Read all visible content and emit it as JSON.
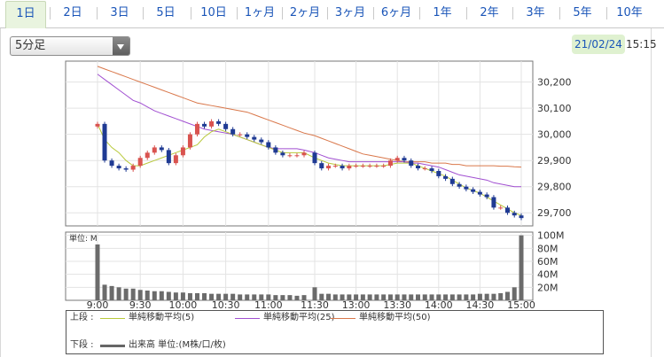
{
  "tabs": [
    {
      "label": "1日",
      "active": true
    },
    {
      "label": "2日"
    },
    {
      "label": "3日"
    },
    {
      "label": "5日"
    },
    {
      "label": "10日"
    },
    {
      "label": "1ヶ月"
    },
    {
      "label": "2ヶ月"
    },
    {
      "label": "3ヶ月"
    },
    {
      "label": "6ヶ月"
    },
    {
      "label": "1年"
    },
    {
      "label": "2年"
    },
    {
      "label": "3年"
    },
    {
      "label": "5年"
    },
    {
      "label": "10年"
    }
  ],
  "interval_select": {
    "value": "5分足"
  },
  "timestamp": {
    "date": "21/02/24",
    "time": "15:15"
  },
  "colors": {
    "up": "#d9534f",
    "down": "#1f3a93",
    "ma5": "#b8c93a",
    "ma25": "#a14fd1",
    "ma50": "#d9774a",
    "volume": "#6b6b6b",
    "link": "#1a55b8"
  },
  "chart_data": [
    {
      "type": "candlestick",
      "title": "",
      "y_tick_labels": [
        "30,200",
        "30,100",
        "30,000",
        "29,900",
        "29,800",
        "29,700"
      ],
      "x_tick_labels": [
        "9:00",
        "9:30",
        "10:00",
        "10:30",
        "11:00",
        "11:30",
        "13:00",
        "13:30",
        "14:00",
        "14:30",
        "15:00"
      ],
      "ylim": [
        29650,
        30280
      ],
      "sessions": [
        {
          "start": "9:00",
          "count": 30
        },
        {
          "start": "12:30",
          "count": 31
        }
      ],
      "close": [
        30040,
        29900,
        29880,
        29870,
        29865,
        29880,
        29910,
        29930,
        29950,
        29940,
        29890,
        29920,
        29950,
        30000,
        30040,
        30030,
        30050,
        30040,
        30020,
        30000,
        30000,
        29990,
        29980,
        29970,
        29950,
        29930,
        29920,
        29920,
        29920,
        29930,
        29890,
        29870,
        29880,
        29880,
        29870,
        29880,
        29880,
        29880,
        29880,
        29880,
        29880,
        29900,
        29910,
        29900,
        29880,
        29870,
        29870,
        29860,
        29840,
        29830,
        29810,
        29800,
        29790,
        29780,
        29770,
        29760,
        29720,
        29720,
        29700,
        29690,
        29680
      ],
      "ma5": [
        30040,
        29980,
        29950,
        29930,
        29900,
        29880,
        29880,
        29890,
        29900,
        29910,
        29920,
        29930,
        29940,
        29950,
        29960,
        29990,
        30010,
        30020,
        30010,
        30000,
        29990,
        29980,
        29970,
        29960,
        29950,
        29940,
        29930,
        29930,
        29930,
        29930,
        29910,
        29900,
        29890,
        29885,
        29880,
        29880,
        29880,
        29880,
        29880,
        29880,
        29880,
        29885,
        29890,
        29890,
        29890,
        29880,
        29870,
        29860,
        29850,
        29840,
        29825,
        29810,
        29795,
        29785,
        29775,
        29760,
        29745,
        29730,
        29715,
        29700,
        29690
      ],
      "ma25": [
        30230,
        30210,
        30190,
        30170,
        30150,
        30130,
        30120,
        30105,
        30090,
        30080,
        30070,
        30060,
        30050,
        30040,
        30030,
        30020,
        30015,
        30010,
        30005,
        30000,
        29990,
        29980,
        29970,
        29960,
        29950,
        29945,
        29945,
        29945,
        29945,
        29940,
        29930,
        29920,
        29910,
        29905,
        29900,
        29895,
        29895,
        29895,
        29895,
        29895,
        29895,
        29895,
        29895,
        29895,
        29890,
        29890,
        29885,
        29880,
        29875,
        29865,
        29855,
        29845,
        29840,
        29835,
        29830,
        29825,
        29815,
        29810,
        29805,
        29800,
        29800
      ],
      "ma50": [
        30260,
        30250,
        30240,
        30230,
        30220,
        30210,
        30200,
        30190,
        30180,
        30170,
        30160,
        30150,
        30140,
        30130,
        30120,
        30115,
        30110,
        30105,
        30100,
        30095,
        30090,
        30085,
        30075,
        30065,
        30055,
        30045,
        30035,
        30025,
        30015,
        30005,
        29995,
        29985,
        29975,
        29965,
        29955,
        29945,
        29935,
        29925,
        29920,
        29915,
        29910,
        29905,
        29900,
        29895,
        29895,
        29895,
        29895,
        29890,
        29890,
        29890,
        29885,
        29885,
        29880,
        29880,
        29880,
        29880,
        29880,
        29878,
        29878,
        29876,
        29875
      ],
      "volume_unit_label": "単位: M",
      "volume_tick_labels": [
        "100M",
        "80M",
        "60M",
        "40M",
        "20M"
      ],
      "volume_ylim": [
        0,
        105
      ],
      "volume": [
        86,
        24,
        22,
        20,
        18,
        18,
        16,
        15,
        14,
        14,
        13,
        12,
        12,
        11,
        11,
        11,
        10,
        10,
        10,
        10,
        9,
        9,
        9,
        9,
        9,
        8,
        8,
        8,
        7,
        8,
        20,
        10,
        10,
        9,
        9,
        9,
        9,
        9,
        9,
        9,
        9,
        9,
        9,
        9,
        9,
        9,
        9,
        9,
        9,
        9,
        9,
        9,
        9,
        9,
        10,
        10,
        10,
        11,
        13,
        20,
        100
      ]
    }
  ],
  "legend": {
    "upper_label": "上段 :",
    "lower_label": "下段 :",
    "ma5_label": "単純移動平均(5)",
    "ma25_label": "単純移動平均(25)",
    "ma50_label": "単純移動平均(50)",
    "volume_label": "出来高 単位:(M株/口/枚)"
  }
}
